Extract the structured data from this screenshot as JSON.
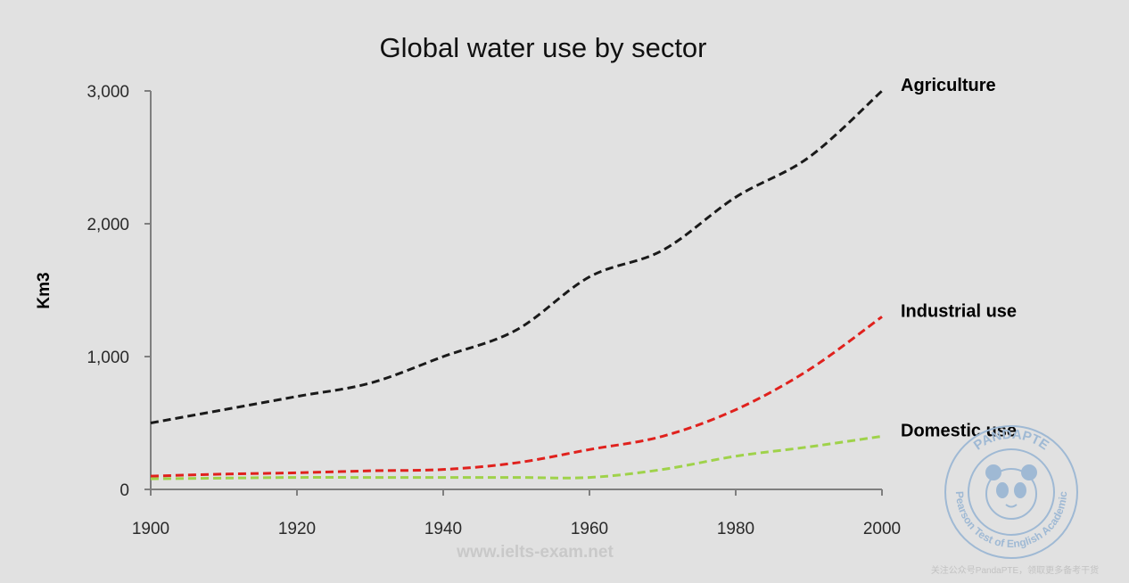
{
  "chart_data": {
    "type": "line",
    "title": "Global water use by sector",
    "xlabel": "",
    "ylabel": "Km3",
    "xlim": [
      1900,
      2000
    ],
    "ylim": [
      0,
      3000
    ],
    "x_ticks": [
      "1900",
      "1920",
      "1940",
      "1960",
      "1980",
      "2000"
    ],
    "y_ticks": [
      "0",
      "1,000",
      "2,000",
      "3,000"
    ],
    "grid": false,
    "legend": "labels at line ends (right)",
    "series": [
      {
        "name": "Agriculture",
        "color": "#1a1a1a",
        "dashed": true,
        "points": [
          [
            1900,
            500
          ],
          [
            1910,
            600
          ],
          [
            1920,
            700
          ],
          [
            1930,
            800
          ],
          [
            1940,
            1000
          ],
          [
            1950,
            1200
          ],
          [
            1960,
            1600
          ],
          [
            1970,
            1800
          ],
          [
            1980,
            2200
          ],
          [
            1990,
            2500
          ],
          [
            2000,
            3000
          ]
        ]
      },
      {
        "name": "Industrial use",
        "color": "#e0211d",
        "dashed": true,
        "points": [
          [
            1900,
            100
          ],
          [
            1910,
            115
          ],
          [
            1920,
            125
          ],
          [
            1930,
            140
          ],
          [
            1940,
            150
          ],
          [
            1950,
            200
          ],
          [
            1960,
            300
          ],
          [
            1970,
            400
          ],
          [
            1980,
            600
          ],
          [
            1990,
            900
          ],
          [
            2000,
            1300
          ]
        ]
      },
      {
        "name": "Domestic use",
        "color": "#9fd24a",
        "dashed": true,
        "points": [
          [
            1900,
            80
          ],
          [
            1910,
            85
          ],
          [
            1920,
            90
          ],
          [
            1930,
            90
          ],
          [
            1940,
            90
          ],
          [
            1950,
            90
          ],
          [
            1960,
            90
          ],
          [
            1970,
            150
          ],
          [
            1980,
            250
          ],
          [
            1990,
            320
          ],
          [
            2000,
            400
          ]
        ]
      }
    ]
  },
  "watermark": {
    "site": "www.ielts-exam.net",
    "stamp_top": "PANDAPTE",
    "stamp_ring": "Pearson Test of English Academic",
    "stamp_footer": "关注公众号PandaPTE，领取更多备考干货"
  },
  "colors": {
    "background": "#e1e1e1",
    "axis": "#7f7f7f"
  }
}
